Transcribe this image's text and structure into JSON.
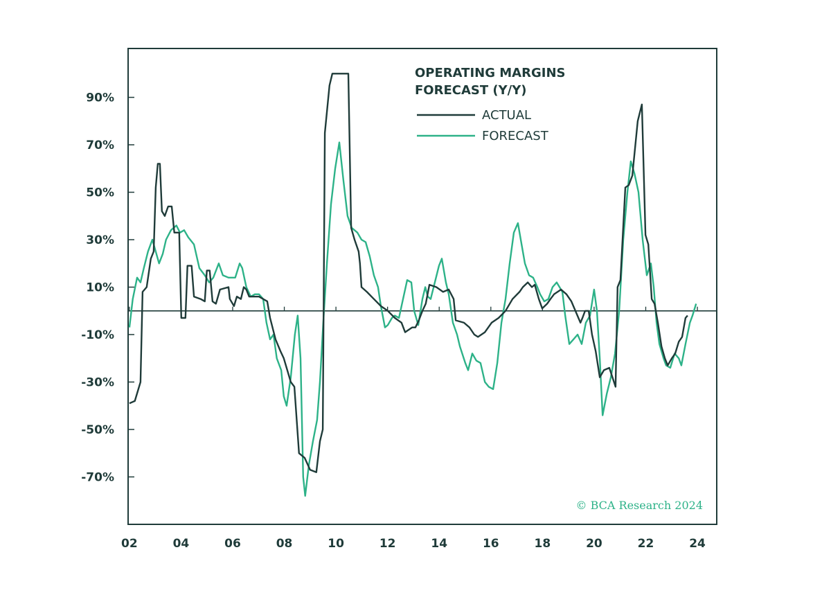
{
  "chart_data": {
    "type": "line",
    "title": "OPERATING MARGINS FORECAST (Y/Y)",
    "title_lines": [
      "OPERATING MARGINS",
      "FORECAST (Y/Y)"
    ],
    "xlabel": "",
    "ylabel": "",
    "xlim": [
      2001.95,
      2024.75
    ],
    "ylim": [
      -90,
      110.6
    ],
    "x_ticks": [
      2002,
      2004,
      2006,
      2008,
      2010,
      2012,
      2014,
      2016,
      2018,
      2020,
      2022,
      2024
    ],
    "x_tick_labels": [
      "02",
      "04",
      "06",
      "08",
      "10",
      "12",
      "14",
      "16",
      "18",
      "20",
      "22",
      "24"
    ],
    "y_ticks": [
      90,
      70,
      50,
      30,
      10,
      -10,
      -30,
      -50,
      -70
    ],
    "y_tick_labels": [
      "90%",
      "70%",
      "50%",
      "30%",
      "10%",
      "-10%",
      "-30%",
      "-50%",
      "-70%"
    ],
    "zero_line": true,
    "grid": false,
    "legend_placement": "top-right",
    "watermark": "© BCA Research 2024",
    "colors": {
      "axis": "#1f3b39",
      "actual": "#1f3b39",
      "forecast": "#2db288"
    },
    "series": [
      {
        "name": "ACTUAL",
        "color": "#1f3b39",
        "x": [
          2002.0,
          2002.21,
          2002.43,
          2002.51,
          2002.67,
          2002.83,
          2002.94,
          2003.02,
          2003.1,
          2003.18,
          2003.26,
          2003.37,
          2003.5,
          2003.64,
          2003.74,
          2003.93,
          2004.01,
          2004.17,
          2004.25,
          2004.41,
          2004.5,
          2004.76,
          2004.92,
          2005.0,
          2005.11,
          2005.22,
          2005.35,
          2005.51,
          2005.84,
          2005.89,
          2006.05,
          2006.16,
          2006.32,
          2006.43,
          2006.53,
          2006.64,
          2007.02,
          2007.34,
          2007.45,
          2007.66,
          2007.85,
          2007.98,
          2008.25,
          2008.39,
          2008.57,
          2008.79,
          2009.0,
          2009.24,
          2009.38,
          2009.49,
          2009.57,
          2009.75,
          2009.86,
          2010.48,
          2010.59,
          2010.72,
          2010.88,
          2010.93,
          2010.99,
          2011.2,
          2011.47,
          2011.74,
          2012.01,
          2012.28,
          2012.54,
          2012.68,
          2012.95,
          2013.08,
          2013.21,
          2013.35,
          2013.48,
          2013.62,
          2013.89,
          2014.15,
          2014.37,
          2014.56,
          2014.64,
          2014.96,
          2015.17,
          2015.36,
          2015.5,
          2015.77,
          2016.03,
          2016.3,
          2016.57,
          2016.84,
          2017.11,
          2017.24,
          2017.43,
          2017.59,
          2017.7,
          2017.86,
          2017.99,
          2018.18,
          2018.31,
          2018.45,
          2018.72,
          2018.93,
          2019.12,
          2019.47,
          2019.55,
          2019.65,
          2019.79,
          2019.92,
          2020.06,
          2020.22,
          2020.38,
          2020.59,
          2020.83,
          2020.91,
          2021.02,
          2021.21,
          2021.34,
          2021.48,
          2021.69,
          2021.85,
          2021.99,
          2022.1,
          2022.23,
          2022.34,
          2022.47,
          2022.61,
          2022.74,
          2022.85,
          2023.01,
          2023.14,
          2023.28,
          2023.41,
          2023.54,
          2023.62
        ],
        "values": [
          -39,
          -38,
          -30,
          8,
          10,
          22,
          25,
          52,
          62,
          62,
          42,
          40,
          44,
          44,
          33,
          33,
          -3,
          -3,
          19,
          19,
          6,
          5,
          4,
          17,
          17,
          4,
          3,
          9,
          10,
          5,
          2,
          6,
          5,
          10,
          9,
          6,
          6,
          4,
          -3,
          -12,
          -17,
          -20,
          -30,
          -32,
          -60,
          -62,
          -67,
          -68,
          -55,
          -50,
          75,
          95,
          100,
          100,
          35,
          30,
          25,
          20,
          10,
          8,
          5,
          2,
          0,
          -3,
          -5,
          -9,
          -7,
          -7,
          -4,
          0,
          3,
          11,
          10,
          8,
          9,
          5,
          -4,
          -5,
          -7,
          -10,
          -11,
          -9,
          -5,
          -3,
          0,
          5,
          8,
          10,
          12,
          10,
          11,
          5,
          1,
          3,
          5,
          7,
          9,
          7,
          4,
          -5,
          -3,
          0,
          0,
          -10,
          -17,
          -28,
          -25,
          -24,
          -32,
          10,
          13,
          52,
          53,
          57,
          80,
          87,
          32,
          28,
          5,
          3,
          -5,
          -15,
          -20,
          -23,
          -20,
          -18,
          -13,
          -11,
          -3,
          -2
        ]
      },
      {
        "name": "FORECAST",
        "color": "#2db288",
        "x": [
          2002.0,
          2002.13,
          2002.3,
          2002.43,
          2002.56,
          2002.72,
          2002.89,
          2003.02,
          2003.15,
          2003.29,
          2003.42,
          2003.61,
          2003.82,
          2003.96,
          2004.12,
          2004.28,
          2004.5,
          2004.71,
          2004.92,
          2005.09,
          2005.25,
          2005.46,
          2005.62,
          2005.84,
          2006.1,
          2006.27,
          2006.37,
          2006.53,
          2006.7,
          2006.86,
          2007.02,
          2007.18,
          2007.31,
          2007.45,
          2007.58,
          2007.71,
          2007.88,
          2007.98,
          2008.09,
          2008.25,
          2008.41,
          2008.52,
          2008.63,
          2008.73,
          2008.81,
          2008.95,
          2009.11,
          2009.27,
          2009.38,
          2009.51,
          2009.65,
          2009.81,
          2009.97,
          2010.13,
          2010.29,
          2010.45,
          2010.61,
          2010.83,
          2010.99,
          2011.15,
          2011.31,
          2011.47,
          2011.63,
          2011.74,
          2011.9,
          2012.01,
          2012.17,
          2012.28,
          2012.44,
          2012.6,
          2012.76,
          2012.92,
          2013.03,
          2013.19,
          2013.35,
          2013.46,
          2013.56,
          2013.67,
          2013.83,
          2013.99,
          2014.1,
          2014.26,
          2014.37,
          2014.53,
          2014.69,
          2014.8,
          2015.01,
          2015.12,
          2015.28,
          2015.44,
          2015.6,
          2015.77,
          2015.92,
          2016.09,
          2016.25,
          2016.41,
          2016.57,
          2016.73,
          2016.89,
          2017.05,
          2017.16,
          2017.32,
          2017.48,
          2017.64,
          2017.8,
          2017.91,
          2018.07,
          2018.23,
          2018.39,
          2018.55,
          2018.66,
          2018.77,
          2018.88,
          2019.04,
          2019.2,
          2019.36,
          2019.52,
          2019.68,
          2019.84,
          2020.0,
          2020.11,
          2020.22,
          2020.33,
          2020.49,
          2020.65,
          2020.81,
          2020.97,
          2021.13,
          2021.29,
          2021.42,
          2021.56,
          2021.72,
          2021.88,
          2022.04,
          2022.2,
          2022.31,
          2022.42,
          2022.53,
          2022.69,
          2022.79,
          2022.95,
          2023.12,
          2023.28,
          2023.38,
          2023.54,
          2023.71,
          2023.81,
          2023.95
        ],
        "values": [
          -7,
          5,
          14,
          12,
          18,
          25,
          30,
          25,
          20,
          24,
          30,
          34,
          36,
          33,
          34,
          31,
          28,
          18,
          15,
          12,
          14,
          20,
          15,
          14,
          14,
          20,
          18,
          10,
          6,
          7,
          7,
          5,
          -5,
          -12,
          -10,
          -20,
          -25,
          -36,
          -40,
          -28,
          -10,
          -2,
          -20,
          -70,
          -78,
          -65,
          -55,
          -46,
          -30,
          -5,
          20,
          45,
          60,
          71,
          55,
          40,
          35,
          33,
          30,
          29,
          23,
          15,
          10,
          2,
          -7,
          -6,
          -3,
          -2,
          -3,
          5,
          13,
          12,
          0,
          -6,
          5,
          10,
          6,
          5,
          12,
          19,
          22,
          12,
          7,
          -5,
          -10,
          -15,
          -22,
          -25,
          -18,
          -21,
          -22,
          -30,
          -32,
          -33,
          -22,
          -5,
          5,
          20,
          33,
          37,
          30,
          20,
          15,
          14,
          10,
          7,
          4,
          5,
          10,
          12,
          10,
          8,
          -2,
          -14,
          -12,
          -10,
          -14,
          -5,
          -2,
          9,
          0,
          -20,
          -44,
          -35,
          -28,
          -18,
          0,
          30,
          50,
          63,
          58,
          50,
          30,
          15,
          20,
          10,
          -5,
          -14,
          -20,
          -23,
          -24,
          -18,
          -20,
          -23,
          -14,
          -5,
          -2,
          3
        ]
      }
    ]
  }
}
